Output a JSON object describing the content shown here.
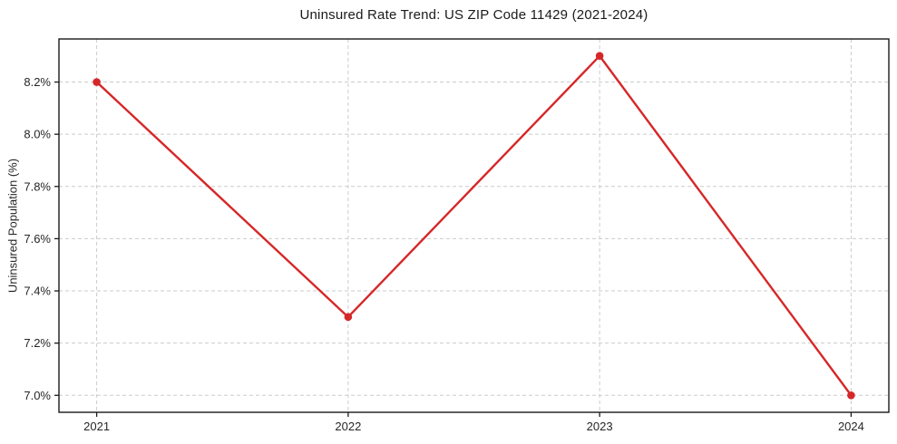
{
  "chart_data": {
    "type": "line",
    "title": "Uninsured Rate Trend: US ZIP Code 11429 (2021-2024)",
    "xlabel": "",
    "ylabel": "Uninsured Population (%)",
    "x": [
      2021,
      2022,
      2023,
      2024
    ],
    "values": [
      8.2,
      7.3,
      8.3,
      7.0
    ],
    "xtick_labels": [
      "2021",
      "2022",
      "2023",
      "2024"
    ],
    "ytick_values": [
      7.0,
      7.2,
      7.4,
      7.6,
      7.8,
      8.0,
      8.2
    ],
    "ytick_labels": [
      "7.0%",
      "7.2%",
      "7.4%",
      "7.6%",
      "7.8%",
      "8.0%",
      "8.2%"
    ],
    "xlim": [
      2020.85,
      2024.15
    ],
    "ylim": [
      6.935,
      8.365
    ],
    "grid": true,
    "grid_style": "dashed",
    "legend": "none",
    "colors": {
      "line": "#d62728",
      "marker": "#d62728",
      "grid": "#cbcbcb",
      "spine": "#1a1a1a",
      "text": "#262626",
      "background": "#ffffff"
    }
  }
}
